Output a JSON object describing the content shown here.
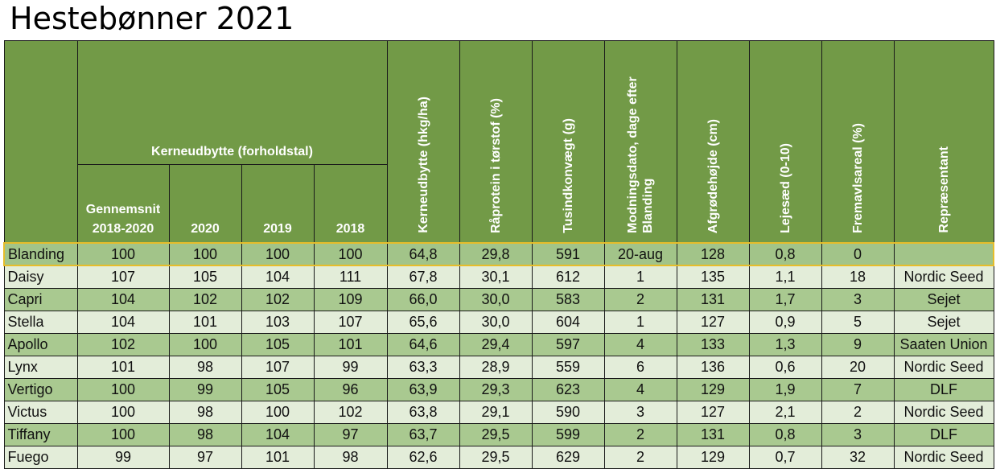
{
  "title": "Hestebønner 2021",
  "colors": {
    "header": "#729a47",
    "row_dark": "#a9c990",
    "row_light": "#e3edd9",
    "reference_border": "#e6bd2a"
  },
  "headers": {
    "group": "Kerneudbytte (forholdstal)",
    "sub": [
      "Gennemsnit 2018-2020",
      "2020",
      "2019",
      "2018"
    ],
    "rotated": [
      "Kerneudbytte (hkg/ha)",
      "Råprotein i tørstof (%)",
      "Tusindkonvægt (g)",
      "Modningsdato, dage efter Blanding",
      "Afgrødehøjde (cm)",
      "Lejesæd (0-10)",
      "Fremavlsareal (%)",
      "Repræsentant"
    ]
  },
  "rows": [
    [
      "Blanding",
      "100",
      "100",
      "100",
      "100",
      "64,8",
      "29,8",
      "591",
      "20-aug",
      "128",
      "0,8",
      "0",
      ""
    ],
    [
      "Daisy",
      "107",
      "105",
      "104",
      "111",
      "67,8",
      "30,1",
      "612",
      "1",
      "135",
      "1,1",
      "18",
      "Nordic Seed"
    ],
    [
      "Capri",
      "104",
      "102",
      "102",
      "109",
      "66,0",
      "30,0",
      "583",
      "2",
      "131",
      "1,7",
      "3",
      "Sejet"
    ],
    [
      "Stella",
      "104",
      "101",
      "103",
      "107",
      "65,6",
      "30,0",
      "604",
      "1",
      "127",
      "0,9",
      "5",
      "Sejet"
    ],
    [
      "Apollo",
      "102",
      "100",
      "105",
      "101",
      "64,6",
      "29,4",
      "597",
      "4",
      "133",
      "1,3",
      "9",
      "Saaten Union"
    ],
    [
      "Lynx",
      "101",
      "98",
      "107",
      "99",
      "63,3",
      "28,9",
      "559",
      "6",
      "136",
      "0,6",
      "20",
      "Nordic Seed"
    ],
    [
      "Vertigo",
      "100",
      "99",
      "105",
      "96",
      "63,9",
      "29,3",
      "623",
      "4",
      "129",
      "1,9",
      "7",
      "DLF"
    ],
    [
      "Victus",
      "100",
      "98",
      "100",
      "102",
      "63,8",
      "29,1",
      "590",
      "3",
      "127",
      "2,1",
      "2",
      "Nordic Seed"
    ],
    [
      "Tiffany",
      "100",
      "98",
      "104",
      "97",
      "63,7",
      "29,5",
      "599",
      "2",
      "131",
      "0,8",
      "3",
      "DLF"
    ],
    [
      "Fuego",
      "99",
      "97",
      "101",
      "98",
      "62,6",
      "29,5",
      "629",
      "2",
      "129",
      "0,7",
      "32",
      "Nordic Seed"
    ]
  ]
}
